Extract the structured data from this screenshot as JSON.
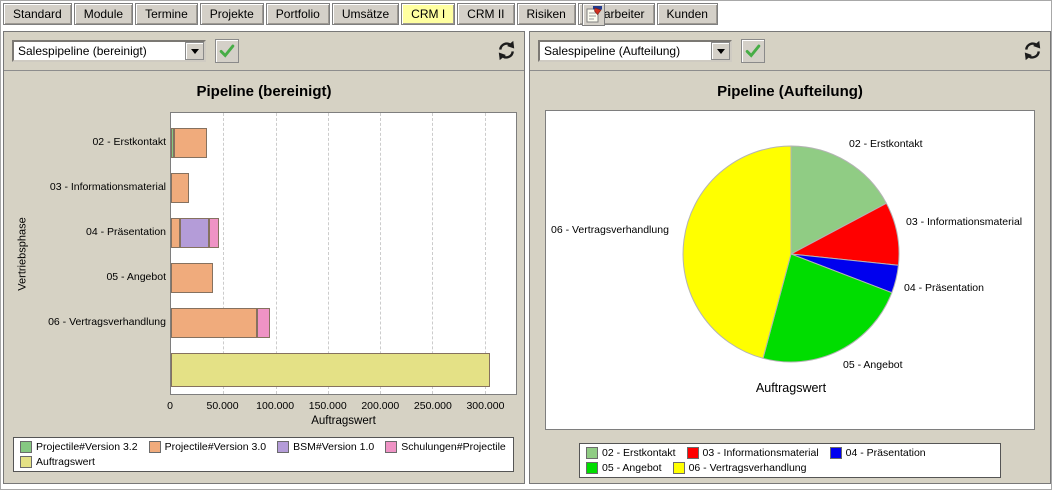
{
  "tabs": {
    "items": [
      "Standard",
      "Module",
      "Termine",
      "Projekte",
      "Portfolio",
      "Umsätze",
      "CRM I",
      "CRM II",
      "Risiken",
      "Mitarbeiter",
      "Kunden"
    ],
    "active": "CRM I"
  },
  "icons": {
    "tabbar_end": "note-edit-icon",
    "dropdown": "chevron-down-icon",
    "apply": "check-icon",
    "refresh": "refresh-arrows-icon"
  },
  "colors": {
    "active_tab": "#ffffa0",
    "toolbar_button_bg": "#d4d0c8",
    "chart_bg": "#d6d2c4",
    "check_green": "#47ad47"
  },
  "panels": [
    {
      "selector_value": "Salespipeline (bereinigt)"
    },
    {
      "selector_value": "Salespipeline (Aufteilung)"
    }
  ],
  "chart_data": [
    {
      "type": "bar",
      "orientation": "horizontal",
      "title": "Pipeline (bereinigt)",
      "xlabel": "Auftragswert",
      "ylabel": "Vertriebsphase",
      "xlim": [
        0,
        330000
      ],
      "xticks": [
        0,
        50000,
        100000,
        150000,
        200000,
        250000,
        300000
      ],
      "xtick_labels": [
        "0",
        "50.000",
        "100.000",
        "150.000",
        "200.000",
        "250.000",
        "300.000"
      ],
      "grid": "vertical-dashed",
      "legend_position": "bottom",
      "series": [
        {
          "name": "Projectile#Version 3.2",
          "color": "#86c982"
        },
        {
          "name": "Projectile#Version 3.0",
          "color": "#f0ab7c"
        },
        {
          "name": "BSM#Version 1.0",
          "color": "#b49cd8"
        },
        {
          "name": "Schulungen#Projectile",
          "color": "#ef93c5"
        },
        {
          "name": "Auftragswert",
          "color": "#e4e186"
        }
      ],
      "rows": [
        {
          "category": "02 - Erstkontakt",
          "segments": [
            {
              "series": "Projectile#Version 3.2",
              "value": 3000
            },
            {
              "series": "Projectile#Version 3.0",
              "value": 31000
            }
          ]
        },
        {
          "category": "03 - Informationsmaterial",
          "segments": [
            {
              "series": "Projectile#Version 3.0",
              "value": 17000
            }
          ]
        },
        {
          "category": "04 - Präsentation",
          "segments": [
            {
              "series": "Projectile#Version 3.0",
              "value": 9000
            },
            {
              "series": "BSM#Version 1.0",
              "value": 27000
            },
            {
              "series": "Schulungen#Projectile",
              "value": 10000
            }
          ]
        },
        {
          "category": "05 - Angebot",
          "segments": [
            {
              "series": "Projectile#Version 3.0",
              "value": 40000
            }
          ]
        },
        {
          "category": "06 - Vertragsverhandlung",
          "segments": [
            {
              "series": "Projectile#Version 3.0",
              "value": 82000
            },
            {
              "series": "Schulungen#Projectile",
              "value": 13000
            }
          ]
        },
        {
          "category": "",
          "segments": [
            {
              "series": "Auftragswert",
              "value": 305000
            }
          ]
        }
      ]
    },
    {
      "type": "pie",
      "title": "Pipeline (Aufteilung)",
      "caption": "Auftragswert",
      "start_angle_deg": 0,
      "direction": "clockwise",
      "legend_position": "bottom",
      "slices": [
        {
          "label": "02 - Erstkontakt",
          "color": "#90cc84",
          "value": 31000
        },
        {
          "label": "03 - Informationsmaterial",
          "color": "#ff0000",
          "value": 17000
        },
        {
          "label": "04 - Präsentation",
          "color": "#0000ee",
          "value": 7500
        },
        {
          "label": "05 - Angebot",
          "color": "#00dd00",
          "value": 42000
        },
        {
          "label": "06 - Vertragsverhandlung",
          "color": "#ffff00",
          "value": 82500
        }
      ]
    }
  ]
}
